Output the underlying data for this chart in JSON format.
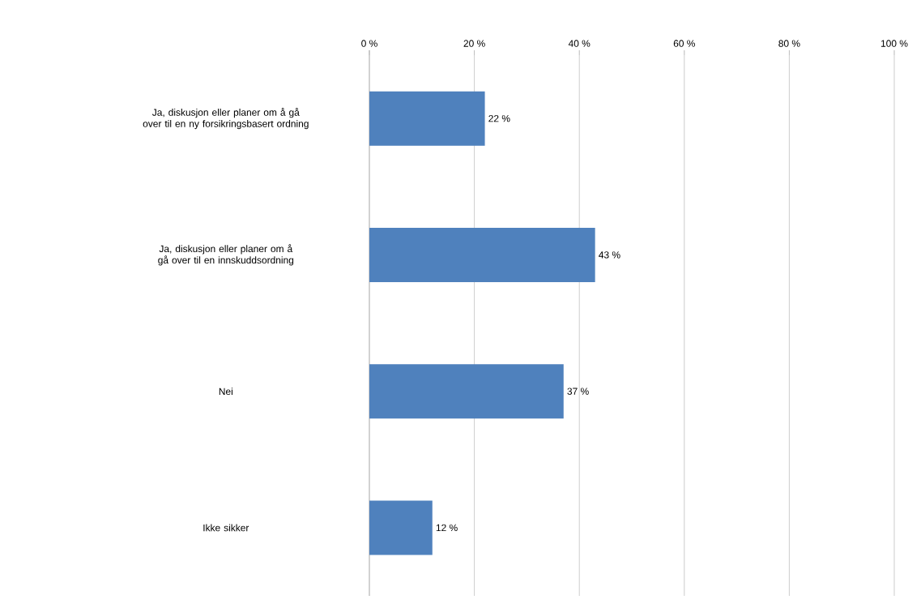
{
  "chart_data": {
    "type": "bar",
    "orientation": "horizontal",
    "categories": [
      "Ja, diskusjon eller planer om å gå over til en ny forsikringsbasert ordning",
      "Ja, diskusjon eller planer om å gå over til en innskuddsordning",
      "Nei",
      "Ikke sikker"
    ],
    "values": [
      22,
      43,
      37,
      12
    ],
    "value_labels": [
      "22 %",
      "43 %",
      "37 %",
      "12 %"
    ],
    "color": "#4f81bd",
    "xlim": [
      0,
      100
    ],
    "xticks": [
      {
        "value": 0,
        "label": "0 %"
      },
      {
        "value": 20,
        "label": "20 %"
      },
      {
        "value": 40,
        "label": "40 %"
      },
      {
        "value": 60,
        "label": "60 %"
      },
      {
        "value": 80,
        "label": "80 %"
      },
      {
        "value": 100,
        "label": "100 %"
      }
    ],
    "grid": "x"
  }
}
